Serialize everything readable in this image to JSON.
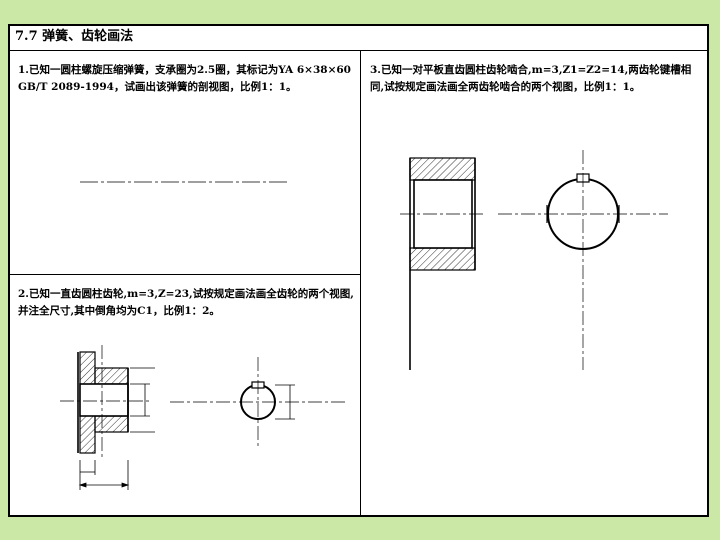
{
  "section_title": "7.7 弹簧、齿轮画法",
  "problems": {
    "p1": "1.已知一圆柱螺旋压缩弹簧，支承圈为2.5圈，其标记为YA 6×38×60 GB/T 2089-1994，试画出该弹簧的剖视图，比例1：1。",
    "p2": "2.已知一直齿圆柱齿轮,m=3,Z=23,试按规定画法画全齿轮的两个视图,并注全尺寸,其中倒角均为C1，比例1：2。",
    "p3": "3.已知一对平板直齿圆柱齿轮啮合,m=3,Z1=Z2=14,两齿轮键槽相同,试按规定画法画全两齿轮啮合的两个视图，比例1：1。"
  },
  "colors": {
    "background": "#cce8a6",
    "sheet": "#ffffff",
    "ink": "#000000"
  }
}
